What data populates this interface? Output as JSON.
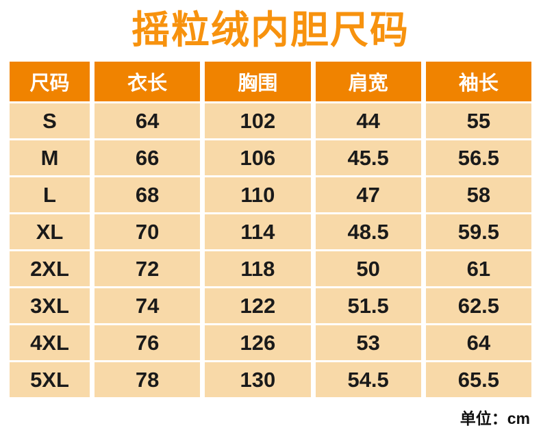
{
  "title": "摇粒绒内胆尺码",
  "unit_note": "单位：cm",
  "colors": {
    "title": "#F7920E",
    "header_bg": "#F08300",
    "header_text": "#FFFFFF",
    "cell_bg": "#F8D9A8",
    "cell_text": "#1A1A1A"
  },
  "chart_data": {
    "type": "table",
    "title": "摇粒绒内胆尺码",
    "unit": "cm",
    "columns": [
      "尺码",
      "衣长",
      "胸围",
      "肩宽",
      "袖长"
    ],
    "rows": [
      [
        "S",
        "64",
        "102",
        "44",
        "55"
      ],
      [
        "M",
        "66",
        "106",
        "45.5",
        "56.5"
      ],
      [
        "L",
        "68",
        "110",
        "47",
        "58"
      ],
      [
        "XL",
        "70",
        "114",
        "48.5",
        "59.5"
      ],
      [
        "2XL",
        "72",
        "118",
        "50",
        "61"
      ],
      [
        "3XL",
        "74",
        "122",
        "51.5",
        "62.5"
      ],
      [
        "4XL",
        "76",
        "126",
        "53",
        "64"
      ],
      [
        "5XL",
        "78",
        "130",
        "54.5",
        "65.5"
      ]
    ]
  }
}
